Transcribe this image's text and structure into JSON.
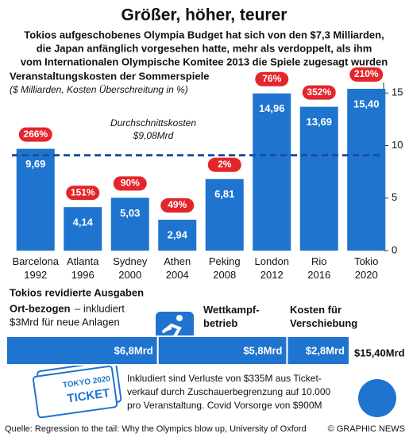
{
  "title": "Größer, höher, teurer",
  "subtitle": [
    "Tokios aufgeschobenes Olympia Budget hat sich von den $7,3 Milliarden,",
    "die Japan anfänglich vorgesehen hatte, mehr als verdoppelt, als ihm",
    "vom Internationalen Olympische Komitee 2013 die Spiele zugesagt wurden"
  ],
  "chart_data": [
    {
      "type": "bar",
      "title": "Veranstaltungskosten der Sommerspiele",
      "subtitle": "($ Milliarden, Kosten Überschreitung in %)",
      "categories": [
        "Barcelona 1992",
        "Atlanta 1996",
        "Sydney 2000",
        "Athen 2004",
        "Peking 2008",
        "London 2012",
        "Rio 2016",
        "Tokio 2020"
      ],
      "values": [
        9.69,
        4.14,
        5.03,
        2.94,
        6.81,
        14.96,
        13.69,
        15.4
      ],
      "value_labels": [
        "9,69",
        "4,14",
        "5,03",
        "2,94",
        "6,81",
        "14,96",
        "13,69",
        "15,40"
      ],
      "color": "#1f74cf",
      "overrun": {
        "values": [
          266,
          151,
          90,
          49,
          2,
          76,
          352,
          210
        ],
        "value_labels": [
          "266%",
          "151%",
          "90%",
          "49%",
          "2%",
          "76%",
          "352%",
          "210%"
        ],
        "color": "#e3262b"
      },
      "average": {
        "value": 9.08,
        "label": "Durchschnittskosten",
        "value_label": "$9,08Mrd",
        "color": "#1a4f9c"
      },
      "ylim": [
        0,
        16
      ],
      "yticks": [
        0,
        5,
        10,
        15
      ]
    },
    {
      "type": "stacked-bar",
      "title": "Tokios revidierte Ausgaben",
      "color": "#1f74cf",
      "series": [
        {
          "name": "Ort-bezogen",
          "note": [
            "– inkludiert",
            "$3Mrd für neue Anlagen"
          ],
          "values": [
            6.8
          ],
          "value_labels": [
            "$6,8Mrd"
          ]
        },
        {
          "name": "Wettkampf-betrieb",
          "values": [
            5.8
          ],
          "value_labels": [
            "$5,8Mrd"
          ]
        },
        {
          "name": "Kosten für Verschiebung",
          "values": [
            2.8
          ],
          "value_labels": [
            "$2,8Mrd"
          ]
        }
      ],
      "total": 15.4,
      "total_label": "$15,40Mrd",
      "xlim": [
        0,
        15.4
      ]
    }
  ],
  "ticket": [
    "TOKYO 2020",
    "TICKET"
  ],
  "footnote": [
    "Inkludiert sind Verluste von $335M aus Ticket-",
    "verkauf durch Zuschauerbegrenzung auf 10.000",
    "pro Veranstaltung. Covid Vorsorge von $900M"
  ],
  "source": "Quelle: Regression to the tail: Why the Olympics blow up, University of Oxford",
  "credit": "© GRAPHIC NEWS"
}
